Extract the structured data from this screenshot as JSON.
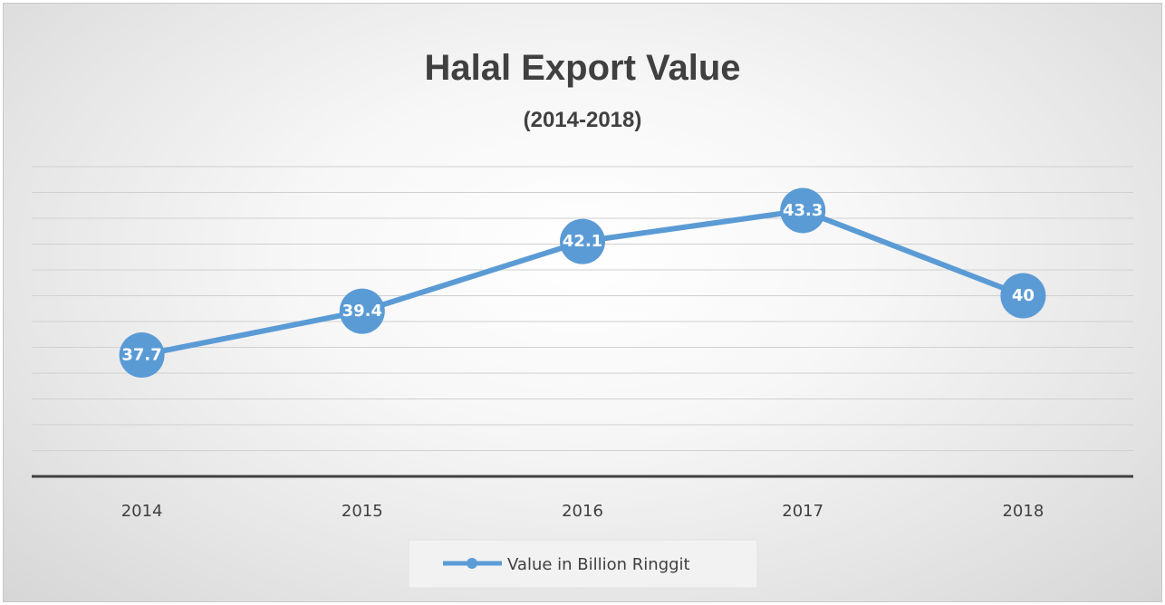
{
  "chart_data": {
    "type": "line",
    "title": "Halal Export Value",
    "subtitle": "(2014-2018)",
    "categories": [
      "2014",
      "2015",
      "2016",
      "2017",
      "2018"
    ],
    "series": [
      {
        "name": "Value in Billion Ringgit",
        "values": [
          37.7,
          39.4,
          42.1,
          43.3,
          40
        ]
      }
    ],
    "data_labels": [
      "37.7",
      "39.4",
      "42.1",
      "43.3",
      "40"
    ],
    "ylim": [
      33,
      45
    ],
    "grid": true,
    "y_tick_labels_shown": false,
    "legend_position": "bottom",
    "colors": {
      "series": "#5b9bd5",
      "gridline": "#d0d0d0",
      "axis": "#404040",
      "text": "#404040"
    }
  }
}
